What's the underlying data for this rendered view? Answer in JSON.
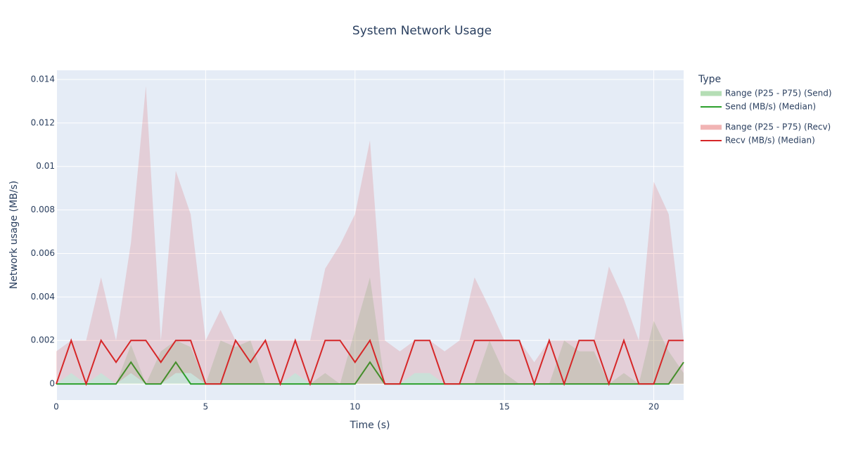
{
  "chart_data": {
    "type": "line",
    "title": "System Network Usage",
    "x_label": "Time (s)",
    "y_label": "Network usage (MB/s)",
    "legend_title": "Type",
    "legend_position": "right",
    "grid": true,
    "x": [
      0,
      0.5,
      1,
      1.5,
      2,
      2.5,
      3,
      3.5,
      4,
      4.5,
      5,
      5.5,
      6,
      6.5,
      7,
      7.5,
      8,
      8.5,
      9,
      9.5,
      10,
      10.5,
      11,
      11.5,
      12,
      12.5,
      13,
      13.5,
      14,
      14.5,
      15,
      15.5,
      16,
      16.5,
      17,
      17.5,
      18,
      18.5,
      19,
      19.5,
      20,
      20.5,
      21
    ],
    "xlim": [
      0,
      21
    ],
    "xticks": [
      0,
      5,
      10,
      15,
      20
    ],
    "ylim": [
      -0.00074,
      0.01442
    ],
    "yticks": [
      0,
      0.002,
      0.004,
      0.006,
      0.008,
      0.01,
      0.012,
      0.014
    ],
    "bands": [
      {
        "name": "Range (P25 - P75) (Send)",
        "color": "rgba(44,160,44,0.15)",
        "lower": [
          0,
          0,
          0,
          0,
          0,
          0,
          0,
          0,
          0,
          0,
          0,
          0,
          0,
          0,
          0,
          0,
          0,
          0,
          0,
          0,
          0,
          0,
          0,
          0,
          0,
          0,
          0,
          0,
          0,
          0,
          0,
          0,
          0,
          0,
          0,
          0,
          0,
          0,
          0,
          0,
          0,
          0,
          0
        ],
        "upper": [
          0,
          0.0005,
          0,
          0.0005,
          0,
          0.0018,
          0,
          0.0015,
          0.002,
          0.0017,
          0,
          0.002,
          0.0017,
          0.002,
          0,
          0,
          0.0005,
          0,
          0.0005,
          0,
          0.0025,
          0.0049,
          0,
          0,
          0.0005,
          0.0005,
          0,
          0,
          0,
          0.002,
          0.0005,
          0,
          0,
          0,
          0.002,
          0.0015,
          0.0015,
          0,
          0.0005,
          0,
          0.0029,
          0.0015,
          0.0005
        ]
      },
      {
        "name": "Range (P25 - P75) (Recv)",
        "color": "rgba(214,39,40,0.15)",
        "lower": [
          0,
          0.0005,
          0,
          0.0005,
          0,
          0.0005,
          0,
          0,
          0.0005,
          0.0005,
          0,
          0,
          0,
          0,
          0,
          0,
          0.0005,
          0,
          0,
          0,
          0,
          0,
          0,
          0,
          0.0005,
          0.0005,
          0,
          0,
          0,
          0,
          0,
          0,
          0,
          0,
          0,
          0,
          0,
          0,
          0,
          0,
          0,
          0,
          0
        ],
        "upper": [
          0.0015,
          0.002,
          0.002,
          0.0049,
          0.002,
          0.0065,
          0.0137,
          0.002,
          0.0098,
          0.0078,
          0.002,
          0.0034,
          0.002,
          0.002,
          0.002,
          0.002,
          0.002,
          0.002,
          0.0053,
          0.0064,
          0.0078,
          0.0112,
          0.002,
          0.0015,
          0.002,
          0.002,
          0.0015,
          0.002,
          0.0049,
          0.0035,
          0.002,
          0.002,
          0.001,
          0.002,
          0.002,
          0.002,
          0.002,
          0.0054,
          0.0039,
          0.002,
          0.0093,
          0.0078,
          0.002
        ]
      }
    ],
    "series": [
      {
        "name": "Send (MB/s) (Median)",
        "color": "#2ca02c",
        "values": [
          0,
          0,
          0,
          0,
          0,
          0.001,
          0,
          0,
          0.001,
          0,
          0,
          0,
          0,
          0,
          0,
          0,
          0,
          0,
          0,
          0,
          0,
          0.001,
          0,
          0,
          0,
          0,
          0,
          0,
          0,
          0,
          0,
          0,
          0,
          0,
          0,
          0,
          0,
          0,
          0,
          0,
          0,
          0,
          0.001
        ]
      },
      {
        "name": "Recv (MB/s) (Median)",
        "color": "#d62728",
        "values": [
          0,
          0.002,
          0,
          0.002,
          0.001,
          0.002,
          0.002,
          0.001,
          0.002,
          0.002,
          0,
          0,
          0.002,
          0.001,
          0.002,
          0,
          0.002,
          0,
          0.002,
          0.002,
          0.001,
          0.002,
          0,
          0,
          0.002,
          0.002,
          0,
          0,
          0.002,
          0.002,
          0.002,
          0.002,
          0,
          0.002,
          0,
          0.002,
          0.002,
          0,
          0.002,
          0,
          0,
          0.002,
          0.002
        ]
      }
    ]
  }
}
